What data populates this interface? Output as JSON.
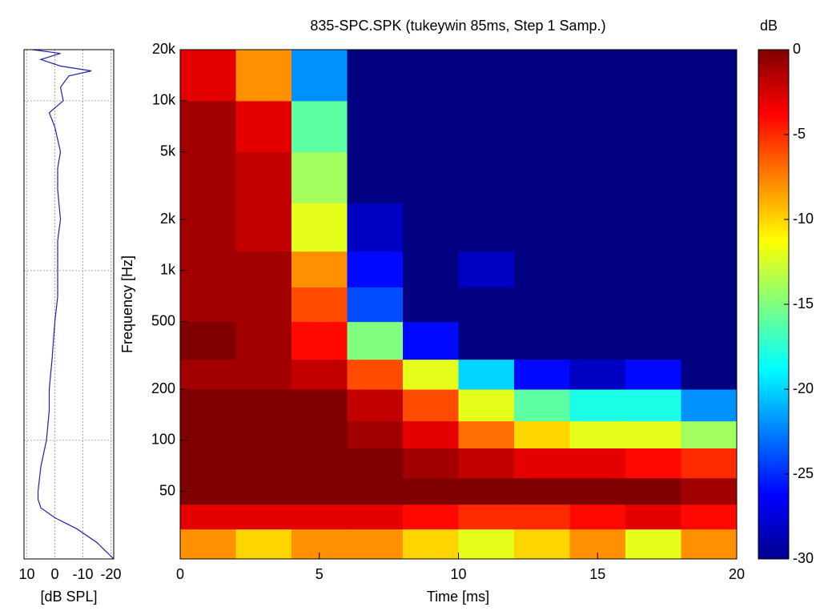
{
  "chart_data": [
    {
      "type": "heatmap",
      "title": "835-SPC.SPK (tukeywin 85ms, Step 1 Samp.)",
      "x_label": "Time [ms]",
      "y_label": "Frequency [Hz]",
      "x_edges": [
        0,
        2,
        4,
        6,
        8,
        10,
        12,
        14,
        16,
        18,
        20
      ],
      "y_edges": [
        20,
        30,
        42,
        60,
        90,
        130,
        200,
        300,
        500,
        800,
        1300,
        2500,
        5000,
        10000,
        20000
      ],
      "z": [
        [
          -8,
          -10,
          -8,
          -8,
          -10,
          -12,
          -10,
          -8,
          -12,
          -8
        ],
        [
          -3,
          -3,
          -3,
          -3,
          -4,
          -5,
          -5,
          -4,
          -3,
          -4
        ],
        [
          0,
          0,
          0,
          0,
          0,
          0,
          0,
          0,
          0,
          -1
        ],
        [
          0,
          0,
          0,
          0,
          -1,
          -2,
          -3,
          -3,
          -4,
          -5
        ],
        [
          0,
          0,
          0,
          -1,
          -3,
          -7,
          -10,
          -12,
          -12,
          -14
        ],
        [
          0,
          0,
          0,
          -2,
          -6,
          -12,
          -16,
          -18,
          -18,
          -22
        ],
        [
          -1,
          -1,
          -2,
          -6,
          -12,
          -20,
          -26,
          -28,
          -26,
          -30
        ],
        [
          0,
          -1,
          -4,
          -15,
          -26,
          -30,
          -30,
          -30,
          -30,
          -30
        ],
        [
          -1,
          -1,
          -6,
          -24,
          -30,
          -30,
          -30,
          -30,
          -30,
          -30
        ],
        [
          -1,
          -1,
          -8,
          -26,
          -30,
          -28,
          -30,
          -30,
          -30,
          -30
        ],
        [
          -1,
          -2,
          -12,
          -28,
          -30,
          -30,
          -30,
          -30,
          -30,
          -30
        ],
        [
          -1,
          -2,
          -14,
          -30,
          -30,
          -30,
          -30,
          -30,
          -30,
          -30
        ],
        [
          -1,
          -3,
          -16,
          -30,
          -30,
          -30,
          -30,
          -30,
          -30,
          -30
        ],
        [
          -3,
          -8,
          -22,
          -30,
          -30,
          -30,
          -30,
          -30,
          -30,
          -30
        ]
      ],
      "xlim": [
        0,
        20
      ],
      "xticks": [
        0,
        5,
        10,
        15,
        20
      ],
      "ylim": [
        20,
        20000
      ],
      "y_scale": "log",
      "yticks": [
        50,
        100,
        200,
        500,
        {
          "value": 1000,
          "label": "1k"
        },
        {
          "value": 2000,
          "label": "2k"
        },
        {
          "value": 5000,
          "label": "5k"
        },
        {
          "value": 10000,
          "label": "10k"
        },
        {
          "value": 20000,
          "label": "20k"
        }
      ],
      "colormap": "jet",
      "colorbar": {
        "label": "dB",
        "lim": [
          -30,
          0
        ],
        "ticks": [
          0,
          -5,
          -10,
          -15,
          -20,
          -25,
          -30
        ]
      }
    },
    {
      "type": "line",
      "x_label": "[dB SPL]",
      "color": "#1f1fb4",
      "freq": [
        20,
        25,
        30,
        35,
        40,
        45,
        50,
        70,
        100,
        150,
        200,
        300,
        500,
        700,
        1000,
        1500,
        2000,
        3000,
        4000,
        5000,
        7000,
        8500,
        10000,
        12000,
        14000,
        15000,
        16000,
        17500,
        19000,
        20000
      ],
      "values": [
        -21,
        -15,
        -8,
        0,
        5,
        6,
        6,
        5,
        3,
        2,
        2,
        1,
        0,
        -1,
        -1,
        -1,
        -2,
        -1,
        -1,
        -2,
        0,
        2,
        -3,
        -2,
        -5,
        -13,
        -2,
        5,
        -2,
        8
      ],
      "xlim": [
        11,
        -21
      ],
      "xticks": [
        10,
        0,
        -10,
        -20
      ],
      "ylim": [
        20,
        20000
      ],
      "y_scale": "log",
      "grid_y": [
        100,
        1000,
        10000
      ],
      "grid": true
    }
  ]
}
